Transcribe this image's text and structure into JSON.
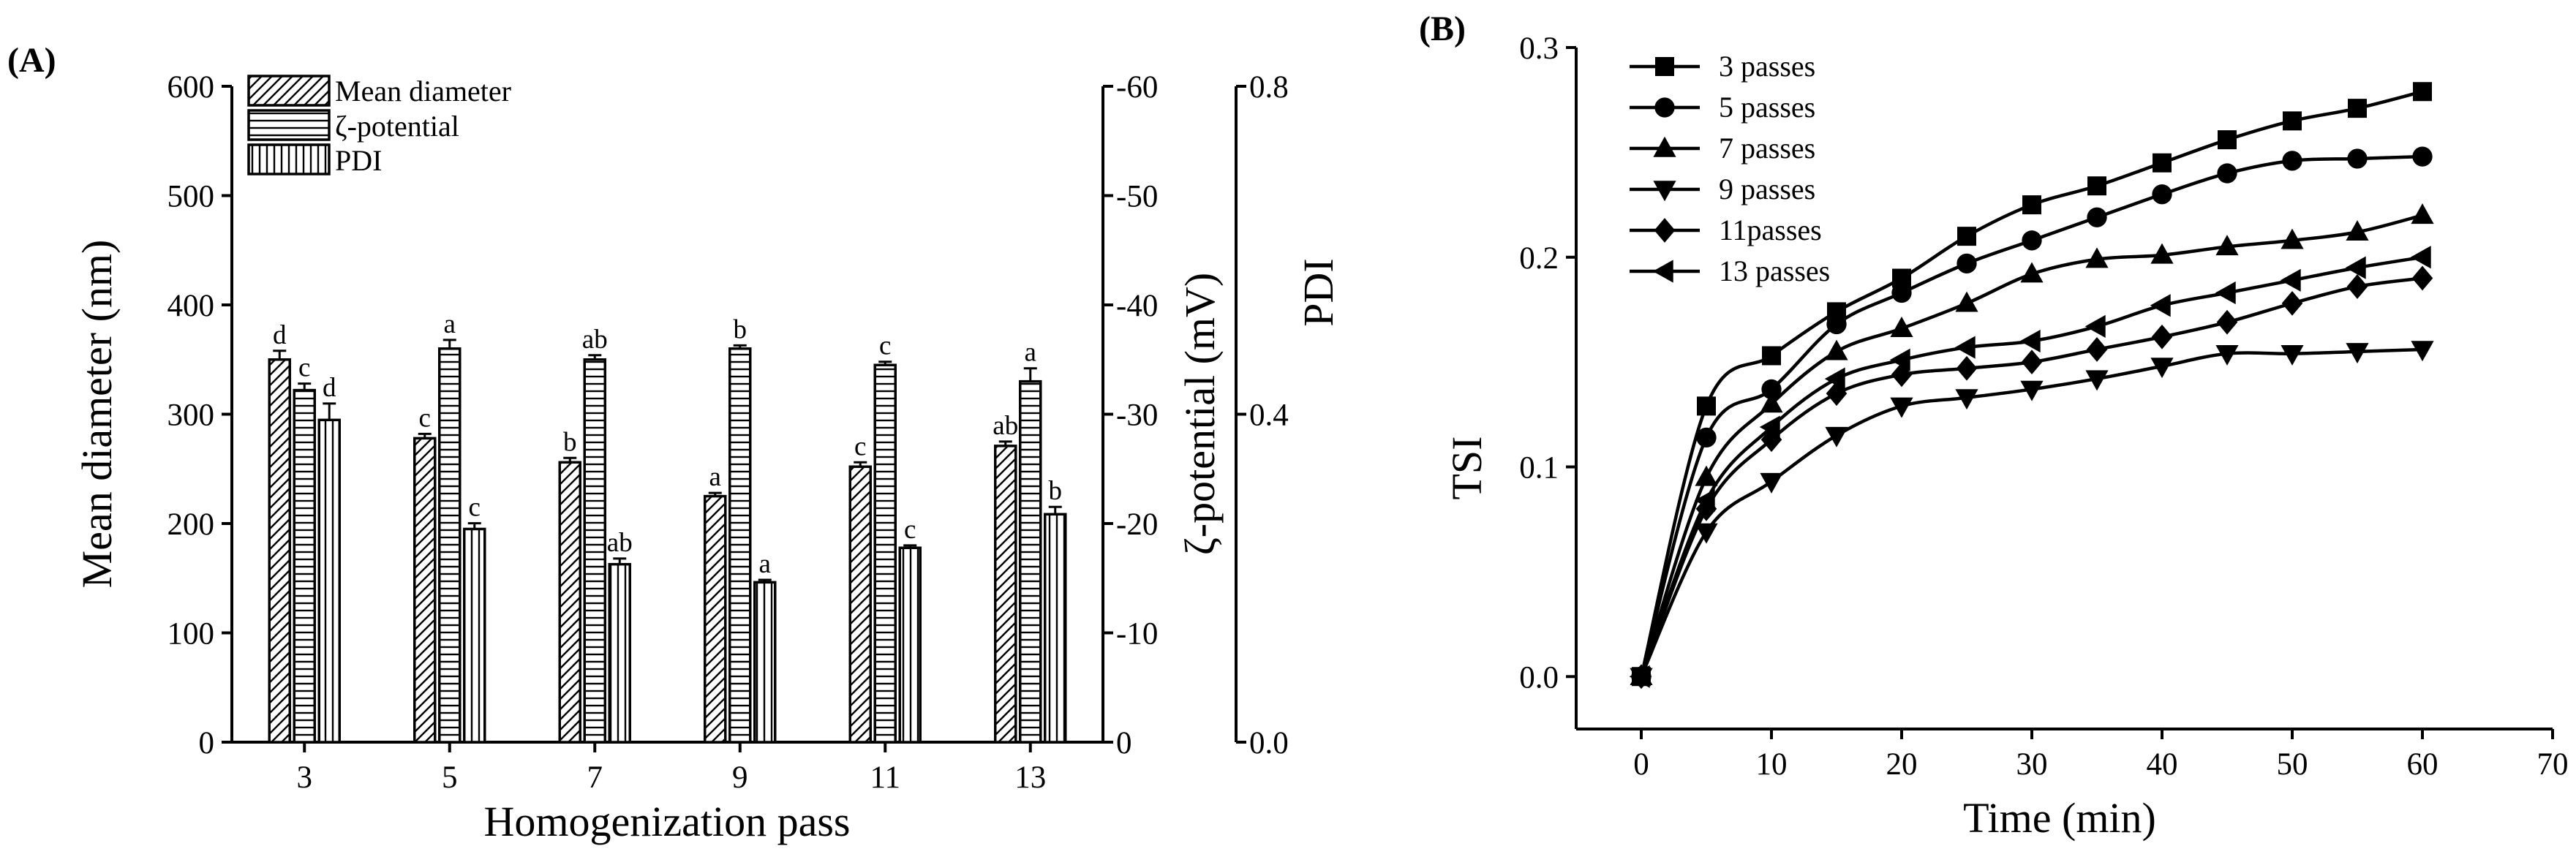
{
  "chart_data": [
    {
      "type": "bar",
      "panel_label": "(A)",
      "categories": [
        "3",
        "5",
        "7",
        "9",
        "11",
        "13"
      ],
      "xlabel": "Homogenization pass",
      "axes": {
        "left": {
          "label": "Mean diameter (nm)",
          "range": [
            0,
            600
          ],
          "ticks": [
            "0",
            "100",
            "200",
            "300",
            "400",
            "500",
            "600"
          ],
          "tick_values": [
            0,
            100,
            200,
            300,
            400,
            500,
            600
          ]
        },
        "mid": {
          "label": "ζ-potential (mV)",
          "range": [
            0,
            -60
          ],
          "ticks": [
            "0",
            "-10",
            "-20",
            "-30",
            "-40",
            "-50",
            "-60"
          ],
          "tick_values": [
            0,
            -10,
            -20,
            -30,
            -40,
            -50,
            -60
          ]
        },
        "right": {
          "label": "PDI",
          "range": [
            0,
            0.8
          ],
          "ticks": [
            "0.0",
            "0.4",
            "0.8"
          ],
          "tick_values": [
            0,
            0.4,
            0.8
          ]
        }
      },
      "legend": {
        "position": "top-left",
        "items": [
          {
            "name": "Mean diameter",
            "pattern": "diagonal"
          },
          {
            "name": "ζ-potential",
            "pattern": "horizontal"
          },
          {
            "name": "PDI",
            "pattern": "vertical"
          }
        ]
      },
      "series": [
        {
          "name": "Mean diameter",
          "axis": "left",
          "pattern": "diagonal",
          "values": [
            350,
            278,
            256,
            225,
            252,
            271
          ],
          "errors": [
            8,
            4,
            4,
            3,
            4,
            4
          ],
          "letters": [
            "d",
            "c",
            "b",
            "a",
            "c",
            "ab"
          ]
        },
        {
          "name": "ζ-potential",
          "axis": "mid",
          "pattern": "horizontal",
          "values": [
            -32.2,
            -36,
            -35,
            -36,
            -34.5,
            -33
          ],
          "errors": [
            0.6,
            0.8,
            0.4,
            0.3,
            0.3,
            1.2
          ],
          "letters": [
            "c",
            "a",
            "ab",
            "b",
            "c",
            "a"
          ]
        },
        {
          "name": "PDI",
          "axis": "right",
          "pattern": "vertical",
          "values": [
            0.393,
            0.26,
            0.217,
            0.195,
            0.237,
            0.278
          ],
          "errors": [
            0.02,
            0.007,
            0.007,
            0.003,
            0.003,
            0.009
          ],
          "letters": [
            "d",
            "c",
            "ab",
            "a",
            "c",
            "b"
          ]
        }
      ]
    },
    {
      "type": "line",
      "panel_label": "(B)",
      "xlabel": "Time (min)",
      "ylabel": "TSI",
      "xlim": [
        -5,
        70
      ],
      "ylim": [
        -0.025,
        0.3
      ],
      "xticks": [
        "0",
        "10",
        "20",
        "30",
        "40",
        "50",
        "60",
        "70"
      ],
      "xtick_values": [
        0,
        10,
        20,
        30,
        40,
        50,
        60,
        70
      ],
      "yticks": [
        "0.0",
        "0.1",
        "0.2",
        "0.3"
      ],
      "ytick_values": [
        0,
        0.1,
        0.2,
        0.3
      ],
      "x": [
        0,
        5,
        10,
        15,
        20,
        25,
        30,
        35,
        40,
        45,
        50,
        55,
        60
      ],
      "legend": {
        "position": "top-left"
      },
      "series": [
        {
          "name": "3 passes",
          "marker": "square",
          "values": [
            0,
            0.129,
            0.153,
            0.174,
            0.19,
            0.21,
            0.225,
            0.234,
            0.245,
            0.256,
            0.265,
            0.271,
            0.279
          ]
        },
        {
          "name": "5 passes",
          "marker": "circle",
          "values": [
            0,
            0.114,
            0.137,
            0.168,
            0.183,
            0.197,
            0.208,
            0.219,
            0.23,
            0.24,
            0.246,
            0.247,
            0.248
          ]
        },
        {
          "name": "7 passes",
          "marker": "triangle-up",
          "values": [
            0,
            0.095,
            0.13,
            0.155,
            0.166,
            0.178,
            0.192,
            0.199,
            0.201,
            0.205,
            0.208,
            0.212,
            0.22
          ]
        },
        {
          "name": "9 passes",
          "marker": "triangle-down",
          "values": [
            0,
            0.069,
            0.093,
            0.115,
            0.129,
            0.133,
            0.137,
            0.142,
            0.148,
            0.154,
            0.154,
            0.155,
            0.156
          ]
        },
        {
          "name": "11passes",
          "marker": "diamond",
          "values": [
            0,
            0.08,
            0.113,
            0.135,
            0.144,
            0.147,
            0.15,
            0.156,
            0.162,
            0.169,
            0.178,
            0.186,
            0.19
          ]
        },
        {
          "name": "13 passes",
          "marker": "triangle-left",
          "values": [
            0,
            0.084,
            0.119,
            0.142,
            0.151,
            0.157,
            0.16,
            0.167,
            0.177,
            0.183,
            0.189,
            0.195,
            0.2
          ]
        }
      ]
    }
  ]
}
